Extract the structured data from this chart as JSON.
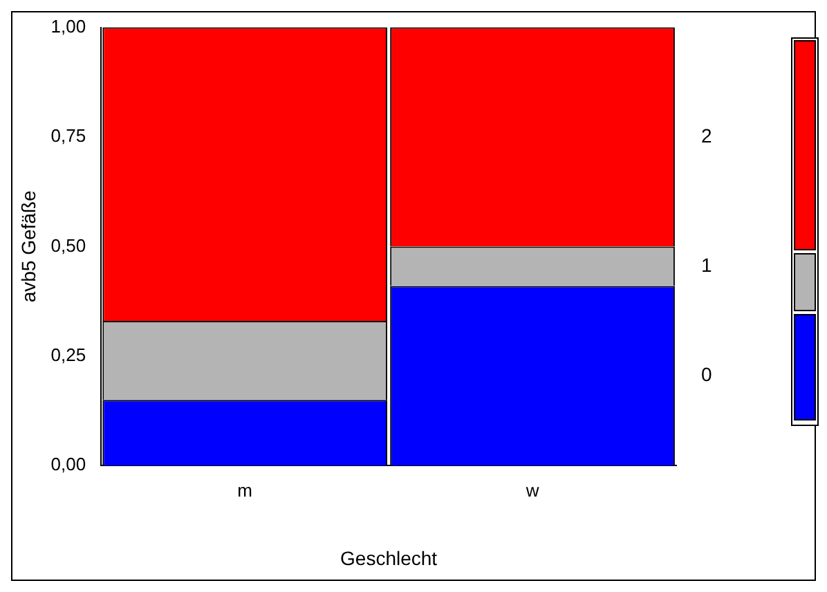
{
  "chart_data": {
    "type": "bar",
    "stacked": true,
    "xlabel": "Geschlecht",
    "ylabel": "avb5 Gefäße",
    "categories": [
      "m",
      "w"
    ],
    "ylim": [
      0,
      1
    ],
    "yticks": [
      {
        "value": 0,
        "label": "0,00"
      },
      {
        "value": 0.25,
        "label": "0,25"
      },
      {
        "value": 0.5,
        "label": "0,50"
      },
      {
        "value": 0.75,
        "label": "0,75"
      },
      {
        "value": 1,
        "label": "1,00"
      }
    ],
    "grid": false,
    "legend": "right",
    "series": [
      {
        "name": "0",
        "color": "#0000ff",
        "values": [
          0.15,
          0.41
        ]
      },
      {
        "name": "1",
        "color": "#b4b4b4",
        "values": [
          0.18,
          0.09
        ]
      },
      {
        "name": "2",
        "color": "#ff0000",
        "values": [
          0.67,
          0.5
        ]
      }
    ]
  }
}
